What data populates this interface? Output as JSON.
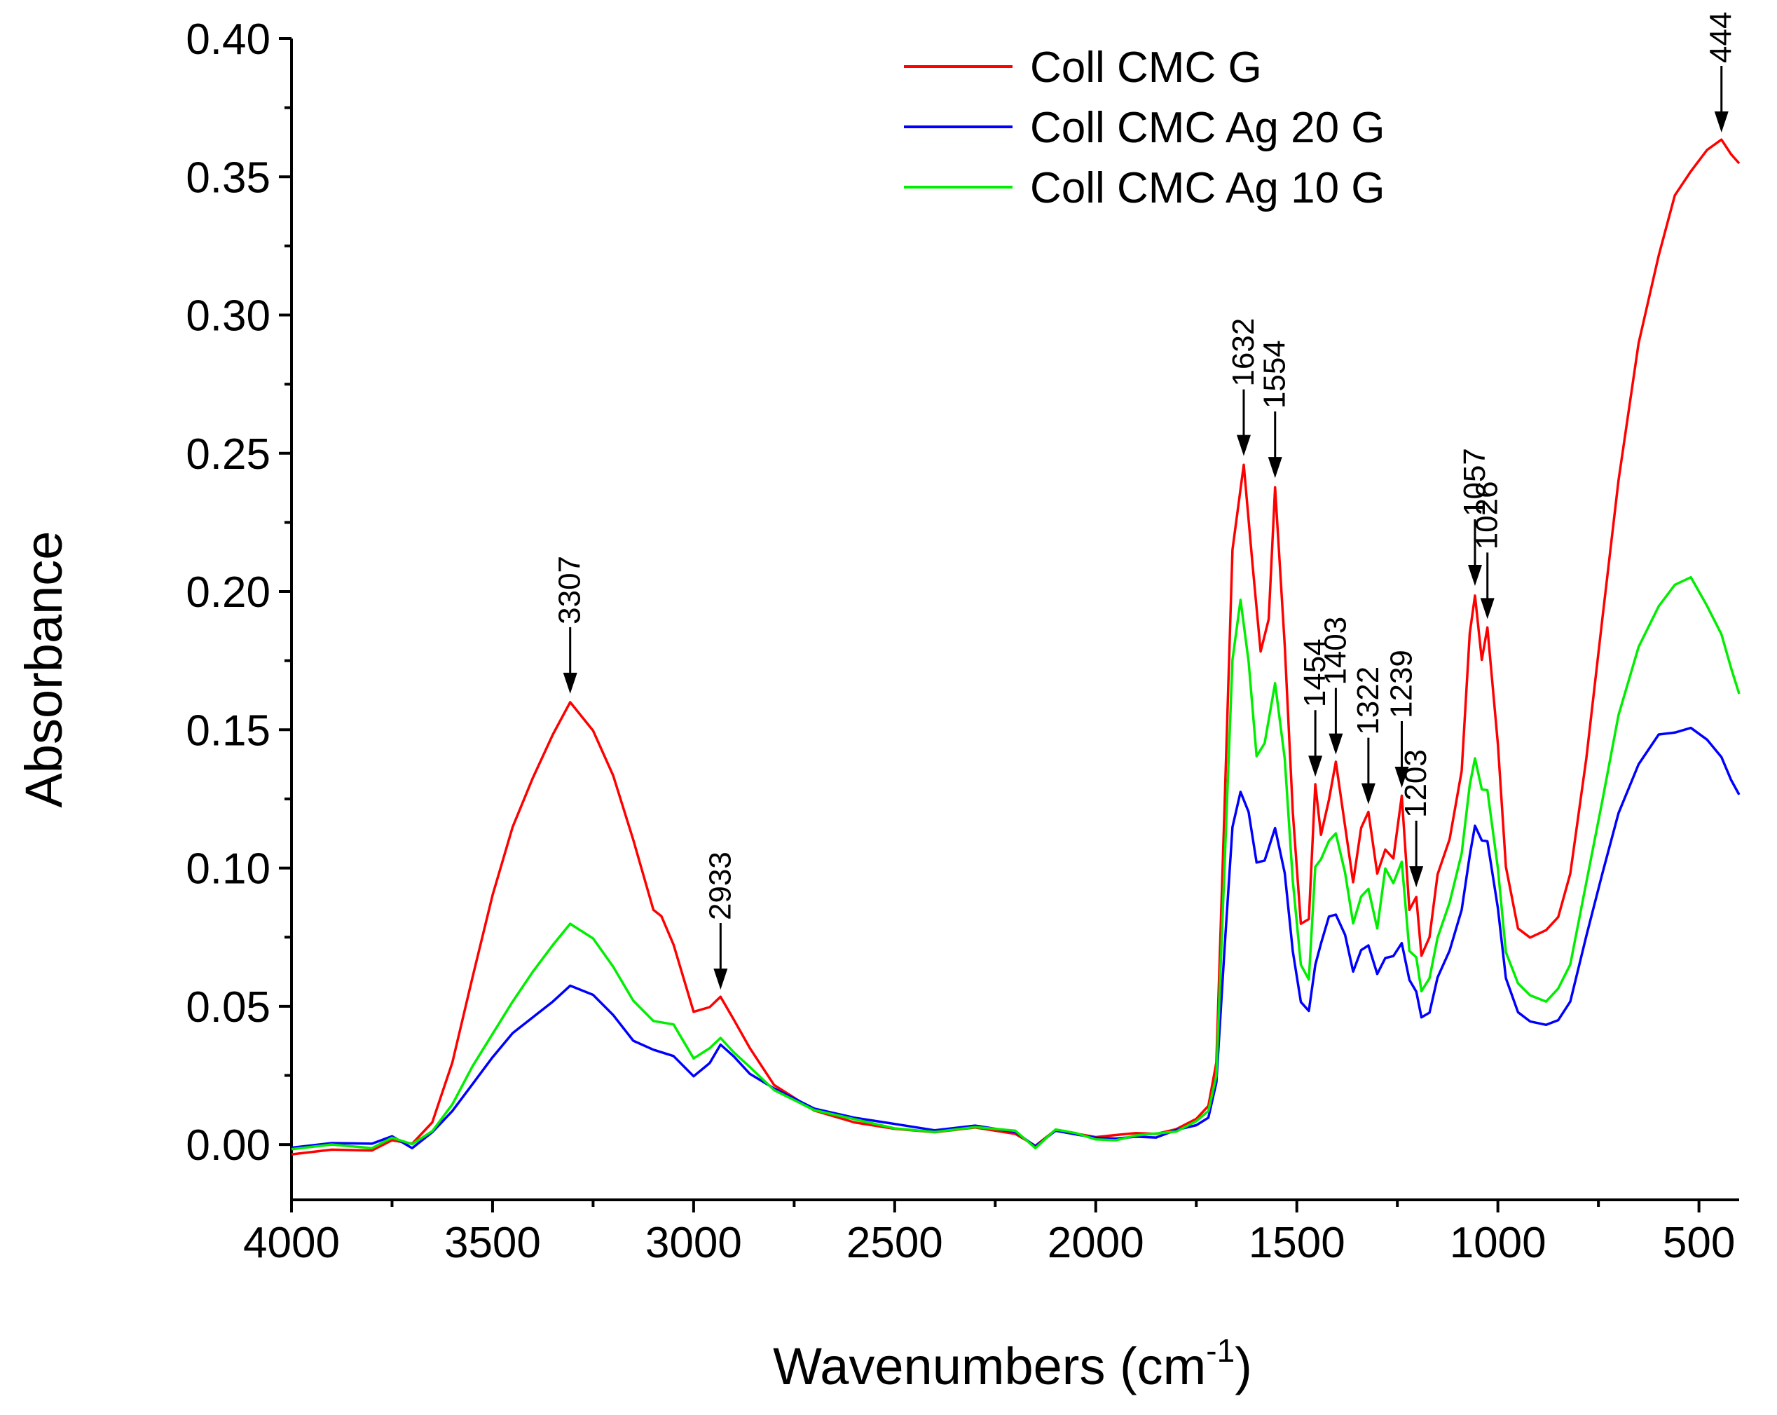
{
  "chart_data": {
    "type": "line",
    "xlabel": "Wavenumbers (cm",
    "xlabel_sup": "-1",
    "xlabel_close": ")",
    "ylabel": "Absorbance",
    "xlim": [
      4000,
      400
    ],
    "ylim": [
      -0.02,
      0.4
    ],
    "x_ticks": [
      4000,
      3500,
      3000,
      2500,
      2000,
      1500,
      1000,
      500
    ],
    "x_tick_labels": [
      "4000",
      "3500",
      "3000",
      "2500",
      "2000",
      "1500",
      "1000",
      "500"
    ],
    "y_ticks": [
      0.0,
      0.05,
      0.1,
      0.15,
      0.2,
      0.25,
      0.3,
      0.35,
      0.4
    ],
    "y_tick_labels": [
      "0.00",
      "0.05",
      "0.10",
      "0.15",
      "0.20",
      "0.25",
      "0.30",
      "0.35",
      "0.40"
    ],
    "legend_position": "top-right",
    "series": [
      {
        "name": "Coll CMC G",
        "color": "#ff0000",
        "points": [
          [
            4000,
            -0.004
          ],
          [
            3900,
            -0.002
          ],
          [
            3800,
            -0.002
          ],
          [
            3750,
            0.002
          ],
          [
            3700,
            0.0
          ],
          [
            3650,
            0.008
          ],
          [
            3600,
            0.03
          ],
          [
            3550,
            0.06
          ],
          [
            3500,
            0.09
          ],
          [
            3450,
            0.115
          ],
          [
            3400,
            0.133
          ],
          [
            3350,
            0.148
          ],
          [
            3307,
            0.16
          ],
          [
            3250,
            0.15
          ],
          [
            3200,
            0.133
          ],
          [
            3150,
            0.11
          ],
          [
            3100,
            0.085
          ],
          [
            3080,
            0.083
          ],
          [
            3050,
            0.072
          ],
          [
            3000,
            0.048
          ],
          [
            2960,
            0.05
          ],
          [
            2933,
            0.053
          ],
          [
            2900,
            0.045
          ],
          [
            2860,
            0.035
          ],
          [
            2800,
            0.022
          ],
          [
            2700,
            0.012
          ],
          [
            2600,
            0.008
          ],
          [
            2500,
            0.006
          ],
          [
            2400,
            0.004
          ],
          [
            2300,
            0.006
          ],
          [
            2200,
            0.004
          ],
          [
            2150,
            0.0
          ],
          [
            2100,
            0.005
          ],
          [
            2050,
            0.004
          ],
          [
            2000,
            0.003
          ],
          [
            1950,
            0.003
          ],
          [
            1900,
            0.004
          ],
          [
            1850,
            0.004
          ],
          [
            1800,
            0.006
          ],
          [
            1750,
            0.009
          ],
          [
            1720,
            0.014
          ],
          [
            1700,
            0.03
          ],
          [
            1680,
            0.12
          ],
          [
            1660,
            0.215
          ],
          [
            1632,
            0.246
          ],
          [
            1610,
            0.21
          ],
          [
            1590,
            0.178
          ],
          [
            1570,
            0.19
          ],
          [
            1554,
            0.238
          ],
          [
            1530,
            0.18
          ],
          [
            1510,
            0.12
          ],
          [
            1490,
            0.08
          ],
          [
            1470,
            0.082
          ],
          [
            1454,
            0.13
          ],
          [
            1440,
            0.112
          ],
          [
            1420,
            0.125
          ],
          [
            1403,
            0.138
          ],
          [
            1380,
            0.115
          ],
          [
            1360,
            0.095
          ],
          [
            1340,
            0.115
          ],
          [
            1322,
            0.12
          ],
          [
            1300,
            0.098
          ],
          [
            1280,
            0.107
          ],
          [
            1260,
            0.103
          ],
          [
            1239,
            0.126
          ],
          [
            1220,
            0.085
          ],
          [
            1203,
            0.09
          ],
          [
            1190,
            0.068
          ],
          [
            1170,
            0.075
          ],
          [
            1150,
            0.098
          ],
          [
            1120,
            0.11
          ],
          [
            1090,
            0.135
          ],
          [
            1070,
            0.185
          ],
          [
            1057,
            0.199
          ],
          [
            1040,
            0.175
          ],
          [
            1026,
            0.187
          ],
          [
            1000,
            0.145
          ],
          [
            980,
            0.1
          ],
          [
            950,
            0.078
          ],
          [
            920,
            0.075
          ],
          [
            880,
            0.078
          ],
          [
            850,
            0.082
          ],
          [
            820,
            0.098
          ],
          [
            780,
            0.14
          ],
          [
            740,
            0.19
          ],
          [
            700,
            0.24
          ],
          [
            650,
            0.29
          ],
          [
            600,
            0.322
          ],
          [
            560,
            0.343
          ],
          [
            520,
            0.352
          ],
          [
            480,
            0.36
          ],
          [
            444,
            0.363
          ],
          [
            420,
            0.358
          ],
          [
            400,
            0.355
          ]
        ]
      },
      {
        "name": "Coll CMC Ag 20 G",
        "color": "#0000ff",
        "points": [
          [
            4000,
            -0.001
          ],
          [
            3900,
            0.001
          ],
          [
            3800,
            0.0
          ],
          [
            3750,
            0.003
          ],
          [
            3700,
            -0.001
          ],
          [
            3650,
            0.004
          ],
          [
            3600,
            0.012
          ],
          [
            3550,
            0.022
          ],
          [
            3500,
            0.032
          ],
          [
            3450,
            0.04
          ],
          [
            3400,
            0.046
          ],
          [
            3350,
            0.052
          ],
          [
            3307,
            0.057
          ],
          [
            3250,
            0.054
          ],
          [
            3200,
            0.047
          ],
          [
            3150,
            0.038
          ],
          [
            3100,
            0.034
          ],
          [
            3050,
            0.032
          ],
          [
            3000,
            0.025
          ],
          [
            2960,
            0.029
          ],
          [
            2933,
            0.036
          ],
          [
            2900,
            0.032
          ],
          [
            2860,
            0.026
          ],
          [
            2800,
            0.02
          ],
          [
            2700,
            0.013
          ],
          [
            2600,
            0.01
          ],
          [
            2500,
            0.007
          ],
          [
            2400,
            0.005
          ],
          [
            2300,
            0.007
          ],
          [
            2200,
            0.005
          ],
          [
            2150,
            -0.001
          ],
          [
            2100,
            0.005
          ],
          [
            2050,
            0.004
          ],
          [
            2000,
            0.002
          ],
          [
            1950,
            0.002
          ],
          [
            1900,
            0.003
          ],
          [
            1850,
            0.003
          ],
          [
            1800,
            0.005
          ],
          [
            1750,
            0.007
          ],
          [
            1720,
            0.01
          ],
          [
            1700,
            0.022
          ],
          [
            1680,
            0.07
          ],
          [
            1660,
            0.115
          ],
          [
            1640,
            0.128
          ],
          [
            1620,
            0.12
          ],
          [
            1600,
            0.102
          ],
          [
            1580,
            0.103
          ],
          [
            1554,
            0.114
          ],
          [
            1530,
            0.098
          ],
          [
            1510,
            0.07
          ],
          [
            1490,
            0.052
          ],
          [
            1470,
            0.048
          ],
          [
            1454,
            0.065
          ],
          [
            1440,
            0.073
          ],
          [
            1420,
            0.082
          ],
          [
            1403,
            0.083
          ],
          [
            1380,
            0.076
          ],
          [
            1360,
            0.063
          ],
          [
            1340,
            0.07
          ],
          [
            1322,
            0.072
          ],
          [
            1300,
            0.062
          ],
          [
            1280,
            0.067
          ],
          [
            1260,
            0.068
          ],
          [
            1239,
            0.073
          ],
          [
            1220,
            0.06
          ],
          [
            1203,
            0.055
          ],
          [
            1190,
            0.046
          ],
          [
            1170,
            0.048
          ],
          [
            1150,
            0.06
          ],
          [
            1120,
            0.07
          ],
          [
            1090,
            0.085
          ],
          [
            1070,
            0.105
          ],
          [
            1057,
            0.115
          ],
          [
            1040,
            0.11
          ],
          [
            1026,
            0.11
          ],
          [
            1000,
            0.085
          ],
          [
            980,
            0.06
          ],
          [
            950,
            0.048
          ],
          [
            920,
            0.045
          ],
          [
            880,
            0.043
          ],
          [
            850,
            0.045
          ],
          [
            820,
            0.052
          ],
          [
            780,
            0.075
          ],
          [
            740,
            0.098
          ],
          [
            700,
            0.12
          ],
          [
            650,
            0.138
          ],
          [
            600,
            0.148
          ],
          [
            560,
            0.149
          ],
          [
            520,
            0.151
          ],
          [
            480,
            0.146
          ],
          [
            444,
            0.14
          ],
          [
            420,
            0.132
          ],
          [
            400,
            0.127
          ]
        ]
      },
      {
        "name": "Coll CMC Ag 10 G",
        "color": "#00ee00",
        "points": [
          [
            4000,
            -0.002
          ],
          [
            3900,
            0.0
          ],
          [
            3800,
            -0.001
          ],
          [
            3750,
            0.002
          ],
          [
            3700,
            0.0
          ],
          [
            3650,
            0.005
          ],
          [
            3600,
            0.015
          ],
          [
            3550,
            0.028
          ],
          [
            3500,
            0.04
          ],
          [
            3450,
            0.052
          ],
          [
            3400,
            0.062
          ],
          [
            3350,
            0.072
          ],
          [
            3307,
            0.08
          ],
          [
            3250,
            0.075
          ],
          [
            3200,
            0.064
          ],
          [
            3150,
            0.052
          ],
          [
            3100,
            0.045
          ],
          [
            3050,
            0.043
          ],
          [
            3000,
            0.031
          ],
          [
            2960,
            0.035
          ],
          [
            2933,
            0.039
          ],
          [
            2900,
            0.033
          ],
          [
            2860,
            0.028
          ],
          [
            2800,
            0.02
          ],
          [
            2700,
            0.012
          ],
          [
            2600,
            0.009
          ],
          [
            2500,
            0.006
          ],
          [
            2400,
            0.005
          ],
          [
            2300,
            0.006
          ],
          [
            2200,
            0.005
          ],
          [
            2150,
            -0.001
          ],
          [
            2100,
            0.005
          ],
          [
            2050,
            0.004
          ],
          [
            2000,
            0.002
          ],
          [
            1950,
            0.002
          ],
          [
            1900,
            0.003
          ],
          [
            1850,
            0.004
          ],
          [
            1800,
            0.005
          ],
          [
            1750,
            0.008
          ],
          [
            1720,
            0.012
          ],
          [
            1700,
            0.025
          ],
          [
            1680,
            0.1
          ],
          [
            1660,
            0.175
          ],
          [
            1640,
            0.197
          ],
          [
            1620,
            0.175
          ],
          [
            1600,
            0.14
          ],
          [
            1580,
            0.145
          ],
          [
            1554,
            0.167
          ],
          [
            1530,
            0.14
          ],
          [
            1510,
            0.095
          ],
          [
            1490,
            0.065
          ],
          [
            1470,
            0.06
          ],
          [
            1454,
            0.1
          ],
          [
            1440,
            0.103
          ],
          [
            1420,
            0.11
          ],
          [
            1403,
            0.113
          ],
          [
            1380,
            0.098
          ],
          [
            1360,
            0.08
          ],
          [
            1340,
            0.09
          ],
          [
            1322,
            0.092
          ],
          [
            1300,
            0.078
          ],
          [
            1280,
            0.1
          ],
          [
            1260,
            0.095
          ],
          [
            1239,
            0.102
          ],
          [
            1220,
            0.07
          ],
          [
            1203,
            0.068
          ],
          [
            1190,
            0.055
          ],
          [
            1170,
            0.06
          ],
          [
            1150,
            0.075
          ],
          [
            1120,
            0.088
          ],
          [
            1090,
            0.105
          ],
          [
            1070,
            0.13
          ],
          [
            1057,
            0.14
          ],
          [
            1040,
            0.128
          ],
          [
            1026,
            0.128
          ],
          [
            1000,
            0.1
          ],
          [
            980,
            0.07
          ],
          [
            950,
            0.058
          ],
          [
            920,
            0.054
          ],
          [
            880,
            0.052
          ],
          [
            850,
            0.056
          ],
          [
            820,
            0.065
          ],
          [
            780,
            0.095
          ],
          [
            740,
            0.125
          ],
          [
            700,
            0.155
          ],
          [
            650,
            0.18
          ],
          [
            600,
            0.195
          ],
          [
            560,
            0.202
          ],
          [
            520,
            0.205
          ],
          [
            480,
            0.195
          ],
          [
            444,
            0.185
          ],
          [
            420,
            0.172
          ],
          [
            400,
            0.163
          ]
        ]
      }
    ],
    "annotations": [
      {
        "label": "3307",
        "x": 3307,
        "y": 0.16
      },
      {
        "label": "2933",
        "x": 2933,
        "y": 0.053
      },
      {
        "label": "1632",
        "x": 1632,
        "y": 0.246
      },
      {
        "label": "1554",
        "x": 1554,
        "y": 0.238
      },
      {
        "label": "1454",
        "x": 1454,
        "y": 0.13
      },
      {
        "label": "1403",
        "x": 1403,
        "y": 0.138
      },
      {
        "label": "1322",
        "x": 1322,
        "y": 0.12
      },
      {
        "label": "1239",
        "x": 1239,
        "y": 0.126
      },
      {
        "label": "1203",
        "x": 1203,
        "y": 0.09
      },
      {
        "label": "1057",
        "x": 1057,
        "y": 0.199
      },
      {
        "label": "1026",
        "x": 1026,
        "y": 0.187
      },
      {
        "label": "444",
        "x": 444,
        "y": 0.363
      }
    ]
  }
}
